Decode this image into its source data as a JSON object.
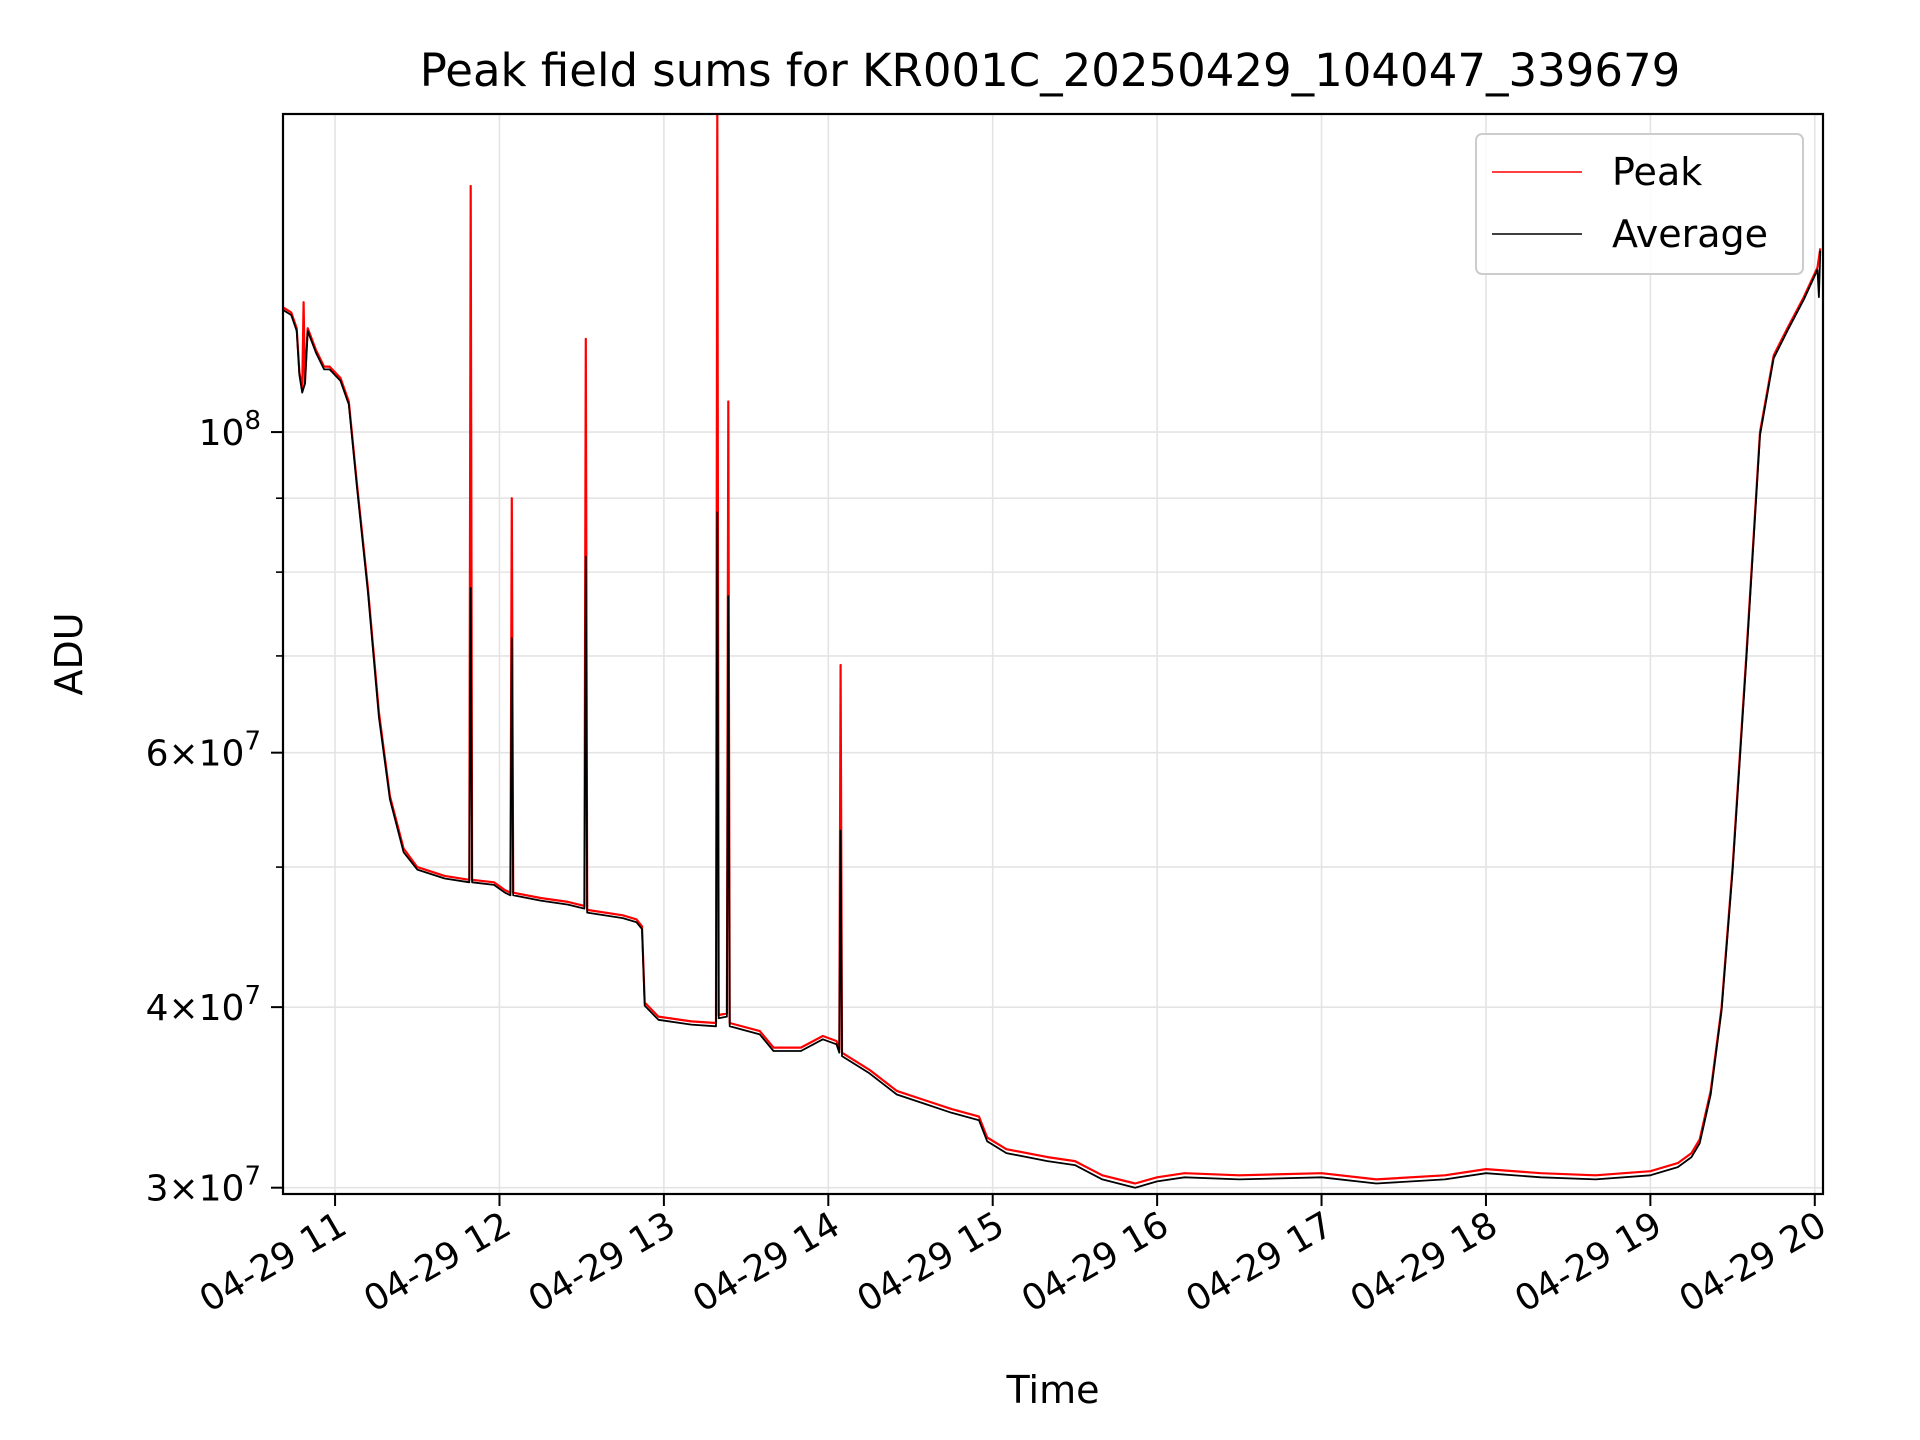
{
  "chart_data": {
    "type": "line",
    "title": "Peak field sums for KR001C_20250429_104047_339679",
    "xlabel": "Time",
    "ylabel": "ADU",
    "y_scale": "log",
    "ylim": [
      29700000,
      166000000
    ],
    "xlim": [
      "2025-04-29 10:41:00",
      "2025-04-29 20:03:00"
    ],
    "x_ticks": [
      {
        "t": "2025-04-29 11:00",
        "label": "04-29 11"
      },
      {
        "t": "2025-04-29 12:00",
        "label": "04-29 12"
      },
      {
        "t": "2025-04-29 13:00",
        "label": "04-29 13"
      },
      {
        "t": "2025-04-29 14:00",
        "label": "04-29 14"
      },
      {
        "t": "2025-04-29 15:00",
        "label": "04-29 15"
      },
      {
        "t": "2025-04-29 16:00",
        "label": "04-29 16"
      },
      {
        "t": "2025-04-29 17:00",
        "label": "04-29 17"
      },
      {
        "t": "2025-04-29 18:00",
        "label": "04-29 18"
      },
      {
        "t": "2025-04-29 19:00",
        "label": "04-29 19"
      },
      {
        "t": "2025-04-29 20:00",
        "label": "04-29 20"
      }
    ],
    "y_major_ticks": [
      {
        "value": 30000000,
        "mantissa": "3",
        "exp": "7"
      },
      {
        "value": 40000000,
        "mantissa": "4",
        "exp": "7"
      },
      {
        "value": 60000000,
        "mantissa": "6",
        "exp": "7"
      },
      {
        "value": 100000000,
        "mantissa": "",
        "exp": "8"
      }
    ],
    "y_minor_grid": [
      50000000,
      70000000,
      80000000,
      90000000
    ],
    "grid": true,
    "legend": "top-right",
    "series": [
      {
        "name": "Peak",
        "color": "#ff0000",
        "points": [
          [
            "2025-04-29 10:41",
            122000000
          ],
          [
            "2025-04-29 10:44",
            121000000
          ],
          [
            "2025-04-29 10:46",
            118000000
          ],
          [
            "2025-04-29 10:47",
            110000000
          ],
          [
            "2025-04-29 10:48",
            107000000
          ],
          [
            "2025-04-29 10:48:30",
            123000000
          ],
          [
            "2025-04-29 10:49",
            108000000
          ],
          [
            "2025-04-29 10:50",
            118000000
          ],
          [
            "2025-04-29 10:53",
            114000000
          ],
          [
            "2025-04-29 10:56",
            111000000
          ],
          [
            "2025-04-29 10:58",
            111000000
          ],
          [
            "2025-04-29 11:02",
            109000000
          ],
          [
            "2025-04-29 11:05",
            105000000
          ],
          [
            "2025-04-29 11:08",
            92000000
          ],
          [
            "2025-04-29 11:12",
            78000000
          ],
          [
            "2025-04-29 11:16",
            64000000
          ],
          [
            "2025-04-29 11:20",
            56000000
          ],
          [
            "2025-04-29 11:25",
            51500000
          ],
          [
            "2025-04-29 11:30",
            50000000
          ],
          [
            "2025-04-29 11:40",
            49300000
          ],
          [
            "2025-04-29 11:49",
            49000000
          ],
          [
            "2025-04-29 11:49:30",
            148000000
          ],
          [
            "2025-04-29 11:50",
            49000000
          ],
          [
            "2025-04-29 11:58",
            48800000
          ],
          [
            "2025-04-29 12:02",
            48200000
          ],
          [
            "2025-04-29 12:04",
            48000000
          ],
          [
            "2025-04-29 12:04:30",
            90000000
          ],
          [
            "2025-04-29 12:05",
            48000000
          ],
          [
            "2025-04-29 12:15",
            47600000
          ],
          [
            "2025-04-29 12:25",
            47300000
          ],
          [
            "2025-04-29 12:31",
            47000000
          ],
          [
            "2025-04-29 12:31:30",
            116000000
          ],
          [
            "2025-04-29 12:32",
            46700000
          ],
          [
            "2025-04-29 12:45",
            46300000
          ],
          [
            "2025-04-29 12:50",
            46000000
          ],
          [
            "2025-04-29 12:52",
            45500000
          ],
          [
            "2025-04-29 12:53",
            40300000
          ],
          [
            "2025-04-29 12:58",
            39400000
          ],
          [
            "2025-04-29 13:10",
            39100000
          ],
          [
            "2025-04-29 13:19",
            39000000
          ],
          [
            "2025-04-29 13:19:30",
            166000000
          ],
          [
            "2025-04-29 13:20",
            39500000
          ],
          [
            "2025-04-29 13:23",
            39600000
          ],
          [
            "2025-04-29 13:23:30",
            105000000
          ],
          [
            "2025-04-29 13:24",
            39000000
          ],
          [
            "2025-04-29 13:35",
            38500000
          ],
          [
            "2025-04-29 13:40",
            37500000
          ],
          [
            "2025-04-29 13:50",
            37500000
          ],
          [
            "2025-04-29 13:58",
            38200000
          ],
          [
            "2025-04-29 14:03",
            37900000
          ],
          [
            "2025-04-29 14:04",
            37400000
          ],
          [
            "2025-04-29 14:04:30",
            69000000
          ],
          [
            "2025-04-29 14:05",
            37200000
          ],
          [
            "2025-04-29 14:15",
            36200000
          ],
          [
            "2025-04-29 14:25",
            35000000
          ],
          [
            "2025-04-29 14:35",
            34500000
          ],
          [
            "2025-04-29 14:45",
            34000000
          ],
          [
            "2025-04-29 14:55",
            33600000
          ],
          [
            "2025-04-29 14:58",
            32500000
          ],
          [
            "2025-04-29 15:05",
            31900000
          ],
          [
            "2025-04-29 15:20",
            31500000
          ],
          [
            "2025-04-29 15:30",
            31300000
          ],
          [
            "2025-04-29 15:40",
            30600000
          ],
          [
            "2025-04-29 15:52",
            30200000
          ],
          [
            "2025-04-29 16:00",
            30500000
          ],
          [
            "2025-04-29 16:10",
            30700000
          ],
          [
            "2025-04-29 16:30",
            30600000
          ],
          [
            "2025-04-29 17:00",
            30700000
          ],
          [
            "2025-04-29 17:20",
            30400000
          ],
          [
            "2025-04-29 17:45",
            30600000
          ],
          [
            "2025-04-29 18:00",
            30900000
          ],
          [
            "2025-04-29 18:20",
            30700000
          ],
          [
            "2025-04-29 18:40",
            30600000
          ],
          [
            "2025-04-29 19:00",
            30800000
          ],
          [
            "2025-04-29 19:10",
            31200000
          ],
          [
            "2025-04-29 19:15",
            31700000
          ],
          [
            "2025-04-29 19:18",
            32400000
          ],
          [
            "2025-04-29 19:22",
            35000000
          ],
          [
            "2025-04-29 19:26",
            40000000
          ],
          [
            "2025-04-29 19:30",
            50000000
          ],
          [
            "2025-04-29 19:35",
            70000000
          ],
          [
            "2025-04-29 19:40",
            100000000
          ],
          [
            "2025-04-29 19:45",
            113000000
          ],
          [
            "2025-04-29 19:50",
            118000000
          ],
          [
            "2025-04-29 19:56",
            124000000
          ],
          [
            "2025-04-29 20:01",
            130000000
          ],
          [
            "2025-04-29 20:02",
            134000000
          ]
        ]
      },
      {
        "name": "Average",
        "color": "#000000",
        "points": [
          [
            "2025-04-29 10:41",
            121500000
          ],
          [
            "2025-04-29 10:44",
            120500000
          ],
          [
            "2025-04-29 10:46",
            117500000
          ],
          [
            "2025-04-29 10:47",
            109500000
          ],
          [
            "2025-04-29 10:48",
            106500000
          ],
          [
            "2025-04-29 10:49",
            108000000
          ],
          [
            "2025-04-29 10:50",
            117500000
          ],
          [
            "2025-04-29 10:53",
            113500000
          ],
          [
            "2025-04-29 10:56",
            110500000
          ],
          [
            "2025-04-29 10:58",
            110500000
          ],
          [
            "2025-04-29 11:02",
            108500000
          ],
          [
            "2025-04-29 11:05",
            104500000
          ],
          [
            "2025-04-29 11:08",
            91500000
          ],
          [
            "2025-04-29 11:12",
            77500000
          ],
          [
            "2025-04-29 11:16",
            63500000
          ],
          [
            "2025-04-29 11:20",
            55700000
          ],
          [
            "2025-04-29 11:25",
            51200000
          ],
          [
            "2025-04-29 11:30",
            49800000
          ],
          [
            "2025-04-29 11:40",
            49100000
          ],
          [
            "2025-04-29 11:49",
            48800000
          ],
          [
            "2025-04-29 11:49:30",
            78000000
          ],
          [
            "2025-04-29 11:50",
            48800000
          ],
          [
            "2025-04-29 11:58",
            48600000
          ],
          [
            "2025-04-29 12:02",
            48000000
          ],
          [
            "2025-04-29 12:04",
            47800000
          ],
          [
            "2025-04-29 12:04:30",
            72000000
          ],
          [
            "2025-04-29 12:05",
            47800000
          ],
          [
            "2025-04-29 12:15",
            47400000
          ],
          [
            "2025-04-29 12:25",
            47100000
          ],
          [
            "2025-04-29 12:31",
            46800000
          ],
          [
            "2025-04-29 12:31:30",
            82000000
          ],
          [
            "2025-04-29 12:32",
            46500000
          ],
          [
            "2025-04-29 12:45",
            46100000
          ],
          [
            "2025-04-29 12:50",
            45800000
          ],
          [
            "2025-04-29 12:52",
            45300000
          ],
          [
            "2025-04-29 12:53",
            40100000
          ],
          [
            "2025-04-29 12:58",
            39200000
          ],
          [
            "2025-04-29 13:10",
            38900000
          ],
          [
            "2025-04-29 13:19",
            38800000
          ],
          [
            "2025-04-29 13:19:30",
            88000000
          ],
          [
            "2025-04-29 13:20",
            39300000
          ],
          [
            "2025-04-29 13:23",
            39400000
          ],
          [
            "2025-04-29 13:23:30",
            77000000
          ],
          [
            "2025-04-29 13:24",
            38800000
          ],
          [
            "2025-04-29 13:35",
            38300000
          ],
          [
            "2025-04-29 13:40",
            37300000
          ],
          [
            "2025-04-29 13:50",
            37300000
          ],
          [
            "2025-04-29 13:58",
            38000000
          ],
          [
            "2025-04-29 14:03",
            37700000
          ],
          [
            "2025-04-29 14:04",
            37200000
          ],
          [
            "2025-04-29 14:04:30",
            53000000
          ],
          [
            "2025-04-29 14:05",
            37000000
          ],
          [
            "2025-04-29 14:15",
            36000000
          ],
          [
            "2025-04-29 14:25",
            34800000
          ],
          [
            "2025-04-29 14:35",
            34300000
          ],
          [
            "2025-04-29 14:45",
            33800000
          ],
          [
            "2025-04-29 14:55",
            33400000
          ],
          [
            "2025-04-29 14:58",
            32300000
          ],
          [
            "2025-04-29 15:05",
            31700000
          ],
          [
            "2025-04-29 15:20",
            31300000
          ],
          [
            "2025-04-29 15:30",
            31100000
          ],
          [
            "2025-04-29 15:40",
            30400000
          ],
          [
            "2025-04-29 15:52",
            30000000
          ],
          [
            "2025-04-29 16:00",
            30300000
          ],
          [
            "2025-04-29 16:10",
            30500000
          ],
          [
            "2025-04-29 16:30",
            30400000
          ],
          [
            "2025-04-29 17:00",
            30500000
          ],
          [
            "2025-04-29 17:20",
            30200000
          ],
          [
            "2025-04-29 17:45",
            30400000
          ],
          [
            "2025-04-29 18:00",
            30700000
          ],
          [
            "2025-04-29 18:20",
            30500000
          ],
          [
            "2025-04-29 18:40",
            30400000
          ],
          [
            "2025-04-29 19:00",
            30600000
          ],
          [
            "2025-04-29 19:10",
            31000000
          ],
          [
            "2025-04-29 19:15",
            31500000
          ],
          [
            "2025-04-29 19:18",
            32200000
          ],
          [
            "2025-04-29 19:22",
            34800000
          ],
          [
            "2025-04-29 19:26",
            39800000
          ],
          [
            "2025-04-29 19:30",
            49700000
          ],
          [
            "2025-04-29 19:35",
            69500000
          ],
          [
            "2025-04-29 19:40",
            99500000
          ],
          [
            "2025-04-29 19:45",
            112500000
          ],
          [
            "2025-04-29 19:50",
            117500000
          ],
          [
            "2025-04-29 19:56",
            123500000
          ],
          [
            "2025-04-29 20:01",
            129500000
          ],
          [
            "2025-04-29 20:01:30",
            124000000
          ],
          [
            "2025-04-29 20:02",
            133500000
          ]
        ]
      }
    ]
  }
}
